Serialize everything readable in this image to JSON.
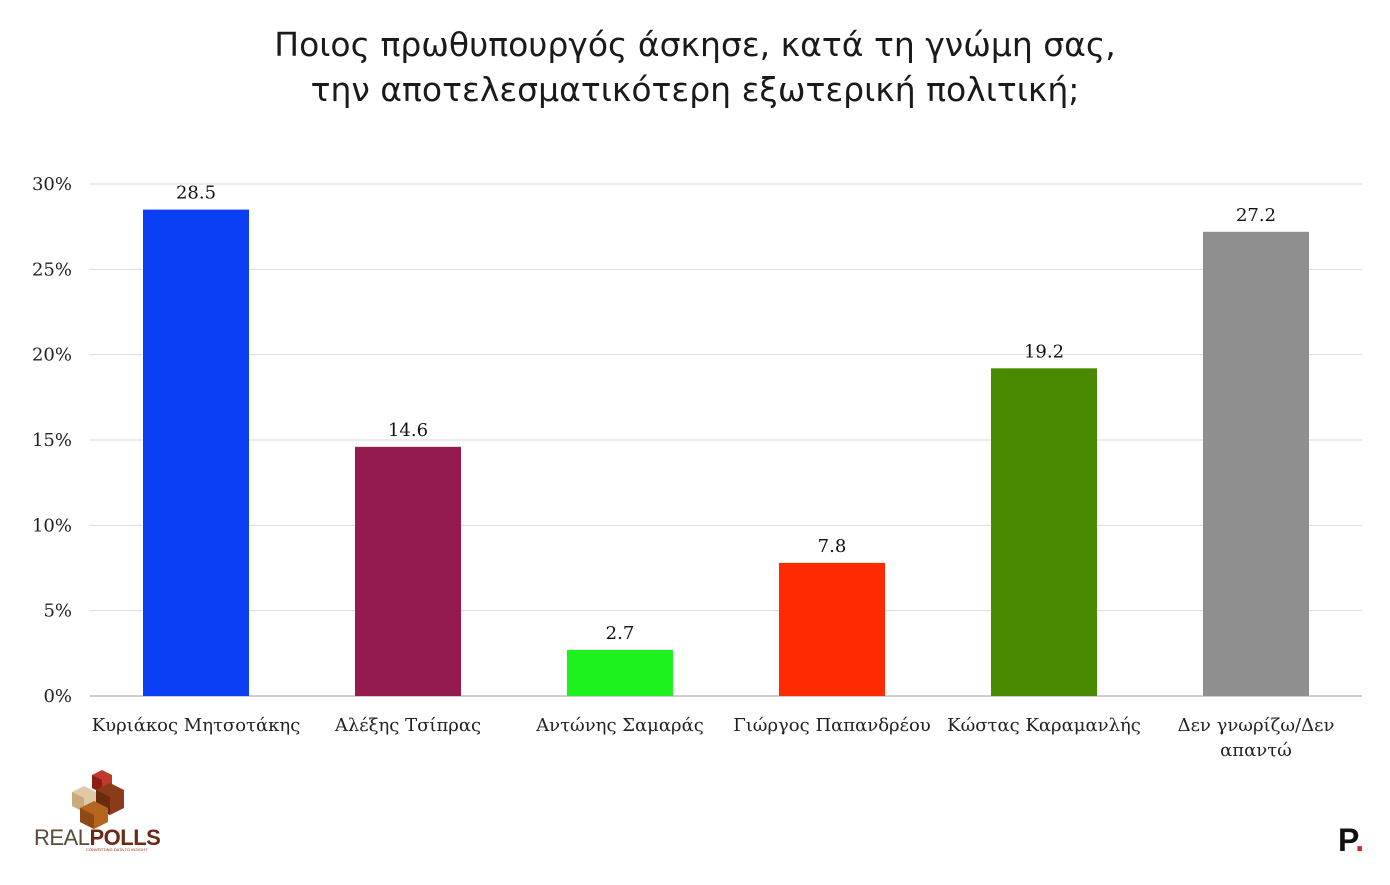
{
  "title_lines": [
    "Ποιος πρωθυπουργός άσκησε, κατά τη γνώμη σας,",
    "την αποτελεσματικότερη εξωτερική πολιτική;"
  ],
  "logo": {
    "text_part1": "REAL",
    "text_part2": "POLLS",
    "tagline": "CONVERTING DATA TO INSIGHT"
  },
  "brand_mark": {
    "letter": "P",
    "dot": "."
  },
  "chart_data": {
    "type": "bar",
    "categories": [
      [
        "Κυριάκος Μητσοτάκης"
      ],
      [
        "Αλέξης Τσίπρας"
      ],
      [
        "Αντώνης Σαμαράς"
      ],
      [
        "Γιώργος Παπανδρέου"
      ],
      [
        "Κώστας Καραμανλής"
      ],
      [
        "Δεν γνωρίζω/Δεν",
        "απαντώ"
      ]
    ],
    "values": [
      28.5,
      14.6,
      2.7,
      7.8,
      19.2,
      27.2
    ],
    "value_labels": [
      "28.5",
      "14.6",
      "2.7",
      "7.8",
      "19.2",
      "27.2"
    ],
    "colors": [
      "#0b3ff5",
      "#951a4f",
      "#1ef21e",
      "#ff2a00",
      "#4a8a00",
      "#8f8f8f"
    ],
    "ylim": [
      0,
      30
    ],
    "yticks": [
      0,
      5,
      10,
      15,
      20,
      25,
      30
    ],
    "ytick_labels": [
      "0%",
      "5%",
      "10%",
      "15%",
      "20%",
      "25%",
      "30%"
    ],
    "grid": true,
    "legend": "none"
  }
}
